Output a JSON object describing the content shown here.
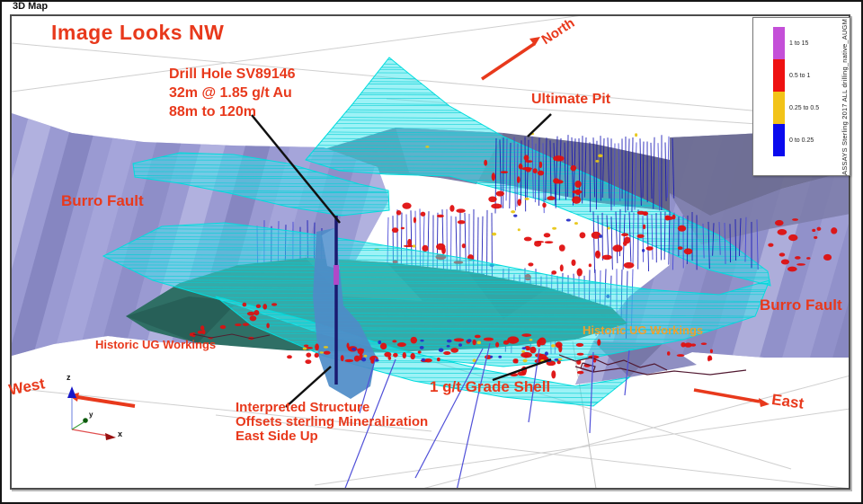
{
  "window": {
    "title": "3D Map"
  },
  "annotations": {
    "view_direction": "Image Looks NW",
    "drill_hole": {
      "line1": "Drill Hole SV89146",
      "line2": "32m @ 1.85 g/t Au",
      "line3": "88m to 120m"
    },
    "ultimate_pit": "Ultimate Pit",
    "burro_fault_left": "Burro Fault",
    "burro_fault_right": "Burro Fault",
    "historic_ug_left": "Historic UG Workings",
    "historic_ug_right": "Historic UG Workings",
    "grade_shell": "1 g/t Grade Shell",
    "interpreted_structure": {
      "line1": "Interpreted Structure",
      "line2": "Offsets sterling Mineralization",
      "line3": "East Side Up"
    }
  },
  "compass": {
    "north": "North",
    "west": "West",
    "east": "East"
  },
  "axis_triad": {
    "x": "x",
    "y": "y",
    "z": "z"
  },
  "legend": {
    "title": "ASSAYS Sterling 2017 ALL drilling_native_AUGM",
    "entries": [
      {
        "label": "1 to 15",
        "color": "#c44fd8"
      },
      {
        "label": "0.5 to 1",
        "color": "#ee1111"
      },
      {
        "label": "0.25 to 0.5",
        "color": "#f2c318"
      },
      {
        "label": "0 to 0.25",
        "color": "#0a0aee"
      }
    ]
  },
  "colors": {
    "annotation_red": "#e8391c",
    "annotation_orange": "#f0a02c",
    "pit_mesh_cyan": "#00dede",
    "fault_lavender": "#9a9ad2",
    "grade_shell_teal": "#2f6f65",
    "structure_blue": "#4e8cc8",
    "drill_trace_blue": "#1818b4",
    "mineralization_red": "#e01010"
  }
}
